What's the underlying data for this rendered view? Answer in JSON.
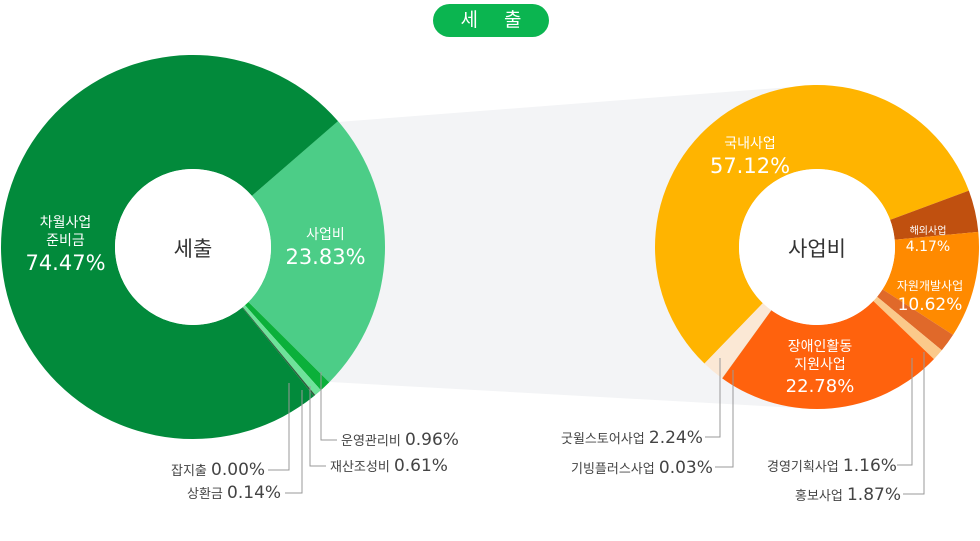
{
  "title": "세 출",
  "chart_data": [
    {
      "type": "pie",
      "center_label": "세출",
      "slices": [
        {
          "label": "사업비",
          "value": 23.83,
          "color": "#4ccd87"
        },
        {
          "label": "운영관리비",
          "value": 0.96,
          "color": "#0bb03a"
        },
        {
          "label": "재산조성비",
          "value": 0.61,
          "color": "#6ee39a"
        },
        {
          "label": "상환금",
          "value": 0.14,
          "color": "#2f5e3d"
        },
        {
          "label": "잡지출",
          "value": 0.0,
          "color": "#2f5e3d"
        },
        {
          "label": "차월사업 준비금",
          "value": 74.47,
          "color": "#028a3b"
        }
      ]
    },
    {
      "type": "pie",
      "center_label": "사업비",
      "slices": [
        {
          "label": "국내사업",
          "value": 57.12,
          "color": "#ffb400"
        },
        {
          "label": "해외사업",
          "value": 4.17,
          "color": "#c0500f"
        },
        {
          "label": "자원개발사업",
          "value": 10.62,
          "color": "#ff8a00"
        },
        {
          "label": "홍보사업",
          "value": 1.87,
          "color": "#e0692a"
        },
        {
          "label": "경영기획사업",
          "value": 1.16,
          "color": "#fbc98a"
        },
        {
          "label": "장애인활동 지원사업",
          "value": 22.78,
          "color": "#ff620d"
        },
        {
          "label": "기빙플러스사업",
          "value": 0.03,
          "color": "#c8a060"
        },
        {
          "label": "굿윌스토어사업",
          "value": 2.24,
          "color": "#fbe8d5"
        }
      ]
    }
  ],
  "labels": {
    "l0": {
      "name1": "사업비",
      "value": "23.83%"
    },
    "l5": {
      "name1": "차월사업",
      "name2": "준비금",
      "value": "74.47%"
    },
    "l1": {
      "name": "운영관리비",
      "value": "0.96%"
    },
    "l2": {
      "name": "재산조성비",
      "value": "0.61%"
    },
    "l3": {
      "name": "상환금",
      "value": "0.14%"
    },
    "l4": {
      "name": "잡지출",
      "value": "0.00%"
    },
    "r0": {
      "name": "국내사업",
      "value": "57.12%"
    },
    "r1": {
      "name": "해외사업",
      "value": "4.17%"
    },
    "r2": {
      "name": "자원개발사업",
      "value": "10.62%"
    },
    "r5": {
      "name1": "장애인활동",
      "name2": "지원사업",
      "value": "22.78%"
    },
    "r3": {
      "name": "홍보사업",
      "value": "1.87%"
    },
    "r4": {
      "name": "경영기획사업",
      "value": "1.16%"
    },
    "r6": {
      "name": "기빙플러스사업",
      "value": "0.03%"
    },
    "r7": {
      "name": "굿윌스토어사업",
      "value": "2.24%"
    }
  }
}
